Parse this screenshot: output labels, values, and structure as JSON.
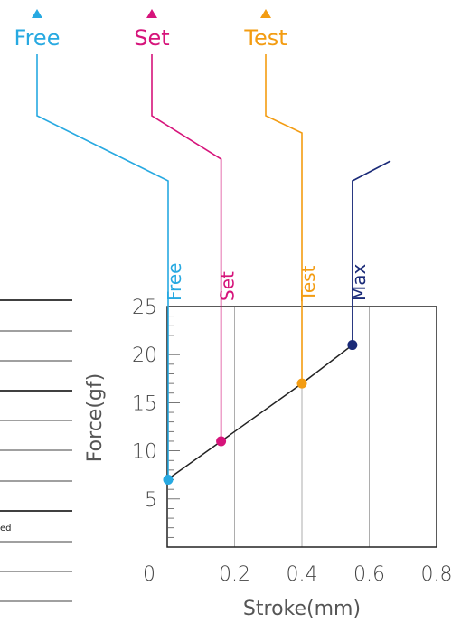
{
  "chart_data": {
    "type": "line",
    "xlabel": "Stroke(mm)",
    "ylabel": "Force(gf)",
    "xlim": [
      0,
      0.8
    ],
    "ylim": [
      0,
      25
    ],
    "x_ticks": [
      "0",
      "0.2",
      "0.4",
      "0.6",
      "0.8"
    ],
    "y_ticks": [
      "5",
      "10",
      "15",
      "20",
      "25"
    ],
    "grid": "vertical",
    "series": [
      {
        "values": [
          {
            "x": 0.0,
            "y": 7
          },
          {
            "x": 0.16,
            "y": 11
          },
          {
            "x": 0.4,
            "y": 17
          },
          {
            "x": 0.55,
            "y": 21
          }
        ]
      }
    ],
    "points": [
      {
        "label": "Free",
        "x": 0.0,
        "y": 7,
        "color": "#27a9e1",
        "top_label": "Free"
      },
      {
        "label": "Set",
        "x": 0.16,
        "y": 11,
        "color": "#d6147b",
        "top_label": "Set"
      },
      {
        "label": "Test",
        "x": 0.4,
        "y": 17,
        "color": "#f39c12",
        "top_label": "Test"
      },
      {
        "label": "Max",
        "x": 0.55,
        "y": 21,
        "color": "#1a2a78",
        "top_label": null
      }
    ],
    "line_color": "#222222"
  },
  "table_fragment": {
    "note": "ed"
  }
}
